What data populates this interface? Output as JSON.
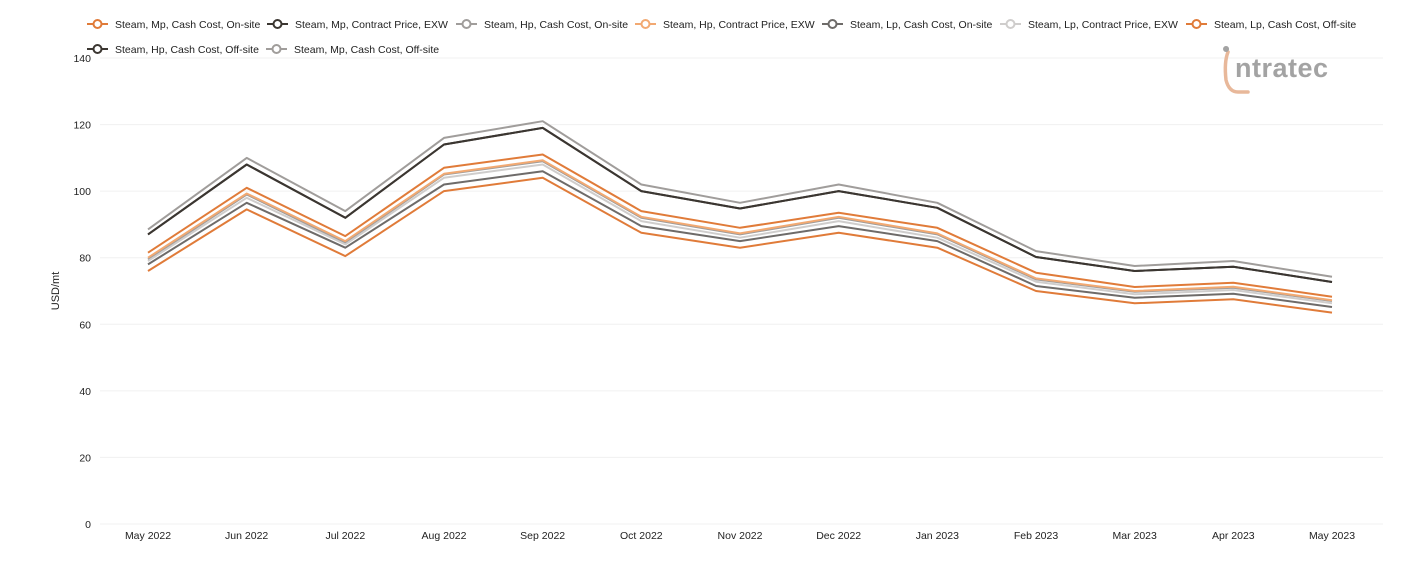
{
  "chart_data": {
    "type": "line",
    "title": "",
    "xlabel": "",
    "ylabel": "USD/mt",
    "ylim": [
      0,
      140
    ],
    "yticks": [
      0,
      20,
      40,
      60,
      80,
      100,
      120,
      140
    ],
    "grid": true,
    "legend": "top",
    "categories": [
      "May 2022",
      "Jun 2022",
      "Jul 2022",
      "Aug 2022",
      "Sep 2022",
      "Oct 2022",
      "Nov 2022",
      "Dec 2022",
      "Jan 2023",
      "Feb 2023",
      "Mar 2023",
      "Apr 2023",
      "May 2023"
    ],
    "series": [
      {
        "name": "Steam, Mp, Cash Cost, On-site",
        "color": "#e07b39",
        "values": [
          81.5,
          101,
          86.5,
          107,
          111,
          94,
          89,
          93.5,
          89,
          75.5,
          71.2,
          72.5,
          68.3
        ]
      },
      {
        "name": "Steam, Mp, Contract Price, EXW",
        "color": "#3b3631",
        "values": [
          87,
          108,
          92,
          114,
          119,
          100,
          94.8,
          100,
          95,
          80.2,
          76,
          77.3,
          72.7
        ]
      },
      {
        "name": "Steam, Hp, Cash Cost, On-site",
        "color": "#a09d9b",
        "values": [
          79.5,
          99,
          84.5,
          105,
          109,
          92,
          87,
          92,
          87,
          73.5,
          69.8,
          71,
          67
        ]
      },
      {
        "name": "Steam, Hp, Contract Price, EXW",
        "color": "#f2a972",
        "values": [
          80,
          99.3,
          85,
          105.2,
          109.3,
          92.3,
          87.3,
          92.3,
          87.3,
          73.8,
          70,
          71.3,
          67.2
        ]
      },
      {
        "name": "Steam, Lp, Cash Cost, On-site",
        "color": "#6e6b69",
        "values": [
          78,
          96.5,
          83,
          102,
          106,
          89.5,
          85,
          89.5,
          85,
          71.5,
          68,
          69.2,
          65.2
        ]
      },
      {
        "name": "Steam, Lp, Contract Price, EXW",
        "color": "#cfcdcc",
        "values": [
          79,
          98,
          84,
          104,
          108,
          91,
          86,
          91,
          86,
          72.8,
          69,
          70.3,
          66.3
        ]
      },
      {
        "name": "Steam, Lp, Cash Cost, Off-site",
        "color": "#e07b39",
        "values": [
          76,
          94.5,
          80.5,
          100,
          104,
          87.5,
          83,
          87.5,
          83,
          70,
          66.3,
          67.5,
          63.5
        ]
      },
      {
        "name": "Steam, Hp, Cash Cost, Off-site",
        "color": "#3b3631",
        "values": [
          87,
          108,
          92,
          114,
          119,
          100,
          94.8,
          100,
          95,
          80.2,
          76,
          77.3,
          72.7
        ]
      },
      {
        "name": "Steam, Mp, Cash Cost, Off-site",
        "color": "#a09d9b",
        "values": [
          88.5,
          110,
          94,
          116,
          121,
          102,
          96.5,
          102,
          96.5,
          82,
          77.5,
          79,
          74.3
        ]
      }
    ]
  },
  "logo": {
    "text": "ntratec",
    "color": "#a3a3a3",
    "accent": "#e8b89a"
  }
}
